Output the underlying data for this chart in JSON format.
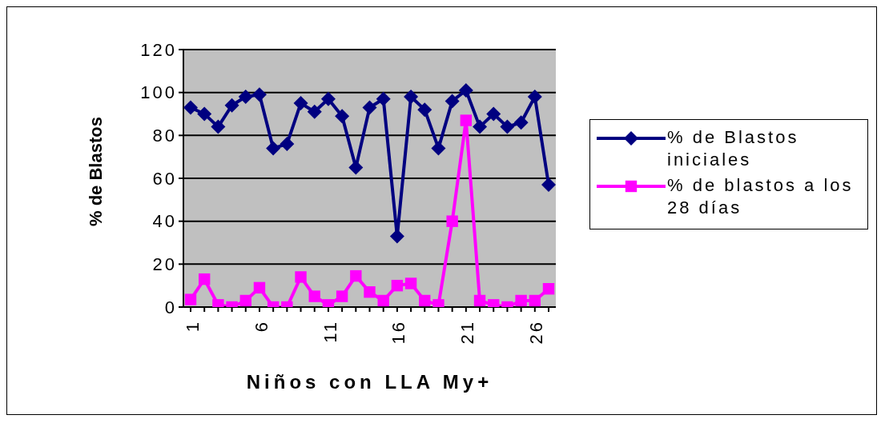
{
  "chart_data": {
    "type": "line",
    "xlabel": "Niños con LLA My+",
    "ylabel": "% de Blastos",
    "categories": [
      "1",
      null,
      null,
      null,
      null,
      "6",
      null,
      null,
      null,
      null,
      "11",
      null,
      null,
      null,
      null,
      "16",
      null,
      null,
      null,
      null,
      "21",
      null,
      null,
      null,
      null,
      "26",
      null
    ],
    "series": [
      {
        "name": "% de Blastos iniciales",
        "color": "#000080",
        "marker": "diamond",
        "values": [
          93,
          90,
          84,
          94,
          98,
          99,
          74,
          76,
          95,
          91,
          97,
          89,
          65,
          93,
          97,
          33,
          98,
          92,
          74,
          96,
          101,
          84,
          90,
          84,
          86,
          98,
          57
        ]
      },
      {
        "name": "% de blastos a los 28 días",
        "color": "#ff00ff",
        "marker": "square",
        "values": [
          3.5,
          13,
          1,
          0,
          3,
          9,
          0,
          0,
          14,
          5,
          1,
          5,
          14.5,
          7,
          3,
          10,
          11,
          3,
          1,
          40,
          87,
          3,
          1,
          0,
          3,
          3,
          8.5
        ]
      }
    ],
    "ylim": [
      0,
      120
    ],
    "yticks": [
      0,
      20,
      40,
      60,
      80,
      100,
      120
    ],
    "grid": "y",
    "legend": "right"
  }
}
